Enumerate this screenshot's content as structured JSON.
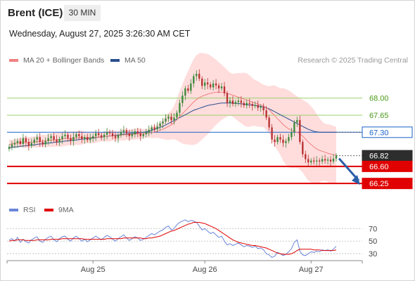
{
  "header": {
    "instrument": "Brent (ICE)",
    "timeframe": "30 MIN",
    "datetime": "Wednesday, August 27, 2025 3:26:30 AM CET"
  },
  "legend": {
    "ma20": "MA 20 + Bollinger Bands",
    "ma50": "MA 50",
    "rsi": "RSI",
    "rsi_ma": "9MA"
  },
  "credit": "Research © 2025 Trading Central",
  "colors": {
    "ma20": "#f08080",
    "ma50": "#2b4f8e",
    "bands": "#ffd7d7",
    "resistance": "#9bd16a",
    "pivot": "#1a63c9",
    "support": "#e00000",
    "rsi": "#6a86d8",
    "rsi_ma": "#e00000",
    "candle_up": "#3c8a3c",
    "candle_down": "#b83232",
    "arrow": "#2b5ea8"
  },
  "chart_data": [
    {
      "type": "line",
      "subtype": "candlestick",
      "title": "Brent (ICE)",
      "x_ticks": [
        "Aug 25",
        "Aug 26",
        "Aug 27"
      ],
      "ylim": [
        65.95,
        68.6
      ],
      "levels": [
        {
          "label": "68.00",
          "value": 68.0,
          "kind": "resistance"
        },
        {
          "label": "67.65",
          "value": 67.65,
          "kind": "resistance"
        },
        {
          "label": "67.30",
          "value": 67.3,
          "kind": "pivot"
        },
        {
          "label": "66.82",
          "value": 66.82,
          "kind": "last"
        },
        {
          "label": "66.60",
          "value": 66.6,
          "kind": "support"
        },
        {
          "label": "66.25",
          "value": 66.25,
          "kind": "support"
        }
      ],
      "close": [
        67.0,
        67.05,
        67.08,
        67.12,
        67.06,
        67.18,
        67.1,
        67.02,
        67.08,
        67.15,
        67.2,
        67.1,
        67.05,
        67.12,
        67.18,
        67.22,
        67.15,
        67.1,
        67.16,
        67.22,
        67.25,
        67.18,
        67.12,
        67.2,
        67.26,
        67.22,
        67.16,
        67.2,
        67.14,
        67.18,
        67.22,
        67.28,
        67.24,
        67.2,
        67.25,
        67.3,
        67.28,
        67.22,
        67.18,
        67.24,
        67.3,
        67.34,
        67.28,
        67.22,
        67.26,
        67.32,
        67.28,
        67.22,
        67.26,
        67.3,
        67.35,
        67.4,
        67.36,
        67.42,
        67.48,
        67.52,
        67.58,
        67.62,
        67.55,
        67.6,
        67.7,
        67.9,
        68.05,
        68.2,
        68.15,
        68.3,
        68.45,
        68.5,
        68.4,
        68.25,
        68.32,
        68.28,
        68.22,
        68.3,
        68.26,
        68.2,
        68.24,
        68.1,
        67.9,
        67.95,
        67.88,
        67.92,
        67.95,
        67.9,
        67.85,
        67.9,
        67.88,
        67.84,
        67.86,
        67.8,
        67.82,
        67.75,
        67.6,
        67.4,
        67.15,
        67.1,
        67.2,
        67.15,
        67.08,
        67.12,
        67.2,
        67.3,
        67.5,
        67.55,
        67.1,
        66.85,
        66.75,
        66.68,
        66.72,
        66.7,
        66.72,
        66.7,
        66.75,
        66.72,
        66.74,
        66.7,
        66.76,
        66.82
      ],
      "ma20": [
        67.05,
        67.06,
        67.07,
        67.08,
        67.08,
        67.09,
        67.09,
        67.09,
        67.1,
        67.1,
        67.11,
        67.11,
        67.12,
        67.12,
        67.13,
        67.14,
        67.14,
        67.15,
        67.15,
        67.16,
        67.17,
        67.17,
        67.17,
        67.18,
        67.18,
        67.19,
        67.19,
        67.19,
        67.19,
        67.19,
        67.2,
        67.2,
        67.2,
        67.21,
        67.21,
        67.22,
        67.22,
        67.23,
        67.23,
        67.23,
        67.24,
        67.25,
        67.25,
        67.25,
        67.26,
        67.26,
        67.27,
        67.27,
        67.27,
        67.28,
        67.28,
        67.3,
        67.31,
        67.32,
        67.34,
        67.36,
        67.39,
        67.42,
        67.45,
        67.5,
        67.56,
        67.62,
        67.68,
        67.74,
        67.8,
        67.86,
        67.92,
        67.97,
        68.01,
        68.04,
        68.06,
        68.08,
        68.1,
        68.11,
        68.12,
        68.12,
        68.12,
        68.11,
        68.1,
        68.08,
        68.06,
        68.04,
        68.02,
        68.0,
        67.98,
        67.96,
        67.94,
        67.92,
        67.9,
        67.88,
        67.86,
        67.84,
        67.8,
        67.76,
        67.7,
        67.64,
        67.58,
        67.52,
        67.46,
        67.41,
        67.37,
        67.34,
        67.32,
        67.3,
        67.27,
        67.22,
        67.16,
        67.1,
        67.05,
        67.0,
        66.96,
        66.93,
        66.91,
        66.89,
        66.87,
        66.85,
        66.84,
        66.83
      ],
      "ma50": [
        66.98,
        66.99,
        67.0,
        67.0,
        67.01,
        67.02,
        67.02,
        67.03,
        67.04,
        67.04,
        67.05,
        67.06,
        67.06,
        67.07,
        67.08,
        67.08,
        67.09,
        67.1,
        67.1,
        67.11,
        67.12,
        67.12,
        67.13,
        67.14,
        67.14,
        67.15,
        67.16,
        67.16,
        67.17,
        67.18,
        67.18,
        67.19,
        67.2,
        67.2,
        67.21,
        67.22,
        67.22,
        67.23,
        67.24,
        67.24,
        67.25,
        67.26,
        67.26,
        67.27,
        67.28,
        67.28,
        67.29,
        67.3,
        67.3,
        67.31,
        67.32,
        67.34,
        67.36,
        67.38,
        67.4,
        67.42,
        67.45,
        67.48,
        67.51,
        67.54,
        67.57,
        67.6,
        67.63,
        67.66,
        67.69,
        67.72,
        67.75,
        67.77,
        67.79,
        67.81,
        67.83,
        67.85,
        67.86,
        67.87,
        67.88,
        67.89,
        67.9,
        67.9,
        67.9,
        67.9,
        67.9,
        67.89,
        67.89,
        67.88,
        67.88,
        67.87,
        67.86,
        67.86,
        67.85,
        67.84,
        67.83,
        67.82,
        67.8,
        67.78,
        67.75,
        67.72,
        67.69,
        67.66,
        67.63,
        67.6,
        67.57,
        67.54,
        67.51,
        67.48,
        67.45,
        67.42,
        67.39,
        67.36,
        67.34,
        67.32,
        67.31,
        67.3,
        67.3,
        67.3,
        67.3,
        67.3,
        67.3,
        67.3
      ]
    },
    {
      "type": "line",
      "title": "RSI",
      "x_ticks": [
        "Aug 25",
        "Aug 26",
        "Aug 27"
      ],
      "ylim": [
        20,
        85
      ],
      "y_ticks": [
        70,
        50,
        30
      ],
      "series": [
        {
          "name": "RSI",
          "values": [
            52,
            54,
            50,
            56,
            48,
            53,
            49,
            47,
            52,
            55,
            57,
            50,
            48,
            53,
            56,
            58,
            52,
            49,
            54,
            57,
            58,
            53,
            50,
            55,
            58,
            54,
            50,
            53,
            49,
            52,
            55,
            58,
            55,
            52,
            56,
            59,
            57,
            53,
            50,
            54,
            57,
            60,
            55,
            51,
            54,
            57,
            55,
            51,
            53,
            56,
            59,
            62,
            60,
            63,
            66,
            68,
            72,
            74,
            68,
            70,
            76,
            80,
            82,
            84,
            81,
            83,
            82,
            80,
            74,
            68,
            70,
            66,
            62,
            64,
            60,
            56,
            58,
            50,
            44,
            46,
            43,
            45,
            47,
            44,
            41,
            43,
            42,
            40,
            42,
            38,
            39,
            36,
            30,
            28,
            24,
            26,
            32,
            30,
            27,
            29,
            33,
            38,
            48,
            52,
            34,
            28,
            27,
            30,
            33,
            32,
            34,
            33,
            36,
            35,
            36,
            34,
            37,
            42
          ]
        },
        {
          "name": "9MA",
          "values": [
            50,
            51,
            51,
            52,
            52,
            52,
            51,
            51,
            51,
            51,
            52,
            52,
            52,
            52,
            52,
            53,
            53,
            53,
            53,
            54,
            54,
            54,
            54,
            54,
            54,
            54,
            54,
            53,
            53,
            53,
            53,
            53,
            53,
            53,
            53,
            54,
            54,
            54,
            54,
            54,
            54,
            55,
            55,
            55,
            55,
            55,
            55,
            55,
            54,
            54,
            55,
            55,
            56,
            57,
            58,
            60,
            62,
            64,
            66,
            67,
            69,
            71,
            73,
            75,
            77,
            78,
            80,
            80,
            80,
            79,
            78,
            76,
            74,
            72,
            70,
            67,
            64,
            61,
            58,
            55,
            52,
            50,
            48,
            47,
            46,
            45,
            44,
            43,
            43,
            42,
            41,
            40,
            39,
            37,
            35,
            33,
            31,
            30,
            29,
            29,
            29,
            30,
            32,
            35,
            37,
            37,
            37,
            37,
            37,
            36,
            36,
            36,
            35,
            35,
            35,
            35,
            35,
            36
          ]
        }
      ]
    }
  ]
}
